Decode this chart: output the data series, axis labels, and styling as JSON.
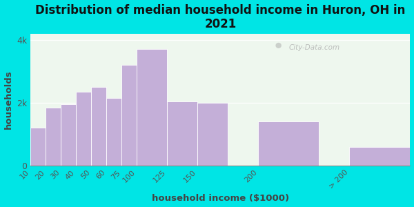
{
  "title": "Distribution of median household income in Huron, OH in\n2021",
  "xlabel": "household income ($1000)",
  "ylabel": "households",
  "bar_color": "#c4afd8",
  "background_color": "#00e5e5",
  "plot_bg_color": "#eef7ee",
  "tick_labels": [
    "10",
    "20",
    "30",
    "40",
    "50",
    "60",
    "75",
    "100",
    "125",
    "150",
    "200",
    "> 200"
  ],
  "bar_values": [
    1200,
    1850,
    1950,
    2350,
    2500,
    2150,
    3200,
    3700,
    2050,
    2000,
    1400,
    600
  ],
  "bar_positions": [
    0,
    1,
    2,
    3,
    4,
    5,
    6,
    7,
    9,
    11,
    15,
    21
  ],
  "bar_widths": [
    1,
    1,
    1,
    1,
    1,
    1,
    1.5,
    2,
    2,
    2,
    4,
    4
  ],
  "ylim": [
    0,
    4200
  ],
  "yticks": [
    0,
    2000,
    4000
  ],
  "ytick_labels": [
    "0",
    "2k",
    "4k"
  ],
  "watermark": "City-Data.com",
  "title_fontsize": 12,
  "label_fontsize": 9.5
}
